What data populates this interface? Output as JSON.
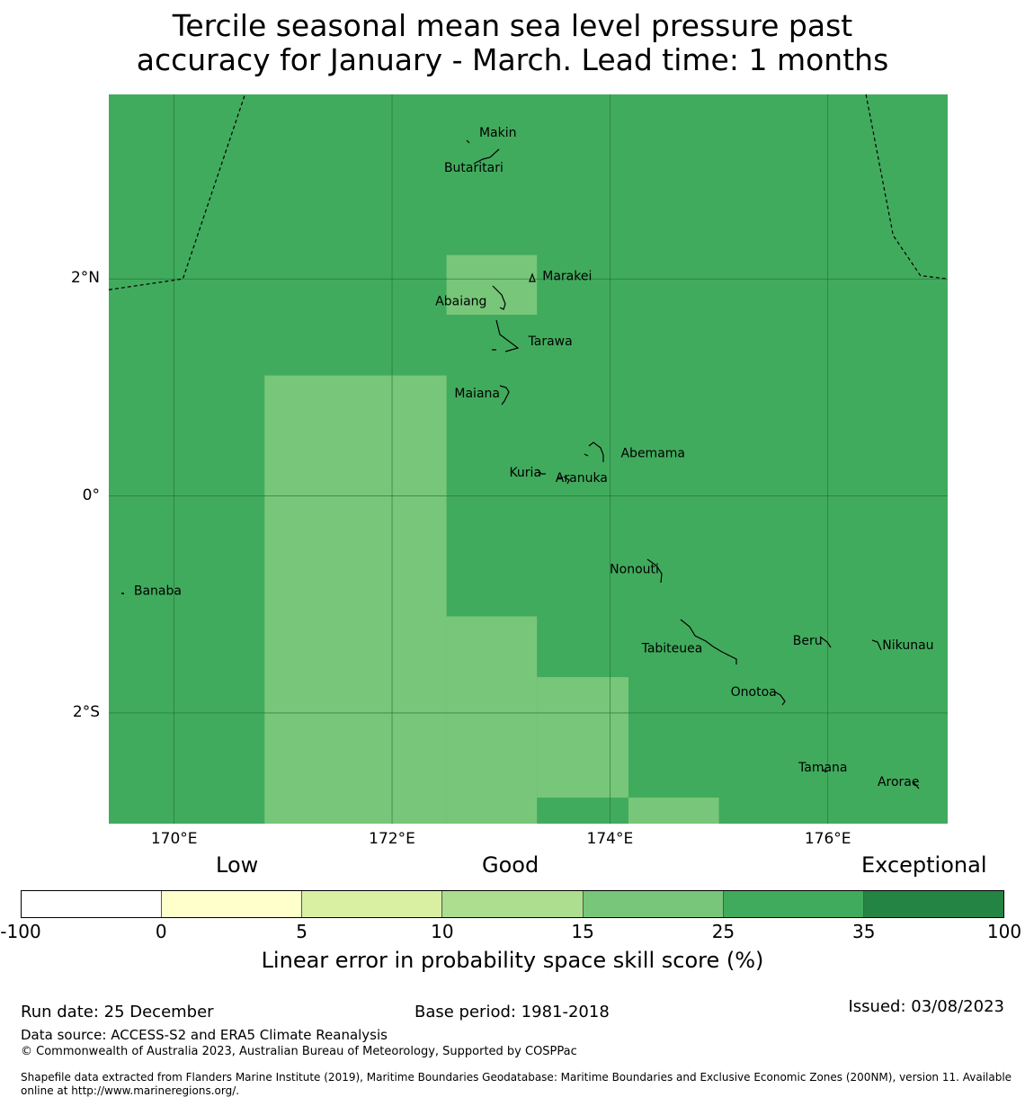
{
  "title": {
    "line1": "Tercile seasonal mean sea level pressure past",
    "line2": "accuracy for January - March. Lead time: 1 months"
  },
  "map": {
    "lon_range": [
      169.4,
      177.1
    ],
    "lat_range": [
      -3.02,
      3.7
    ],
    "base_color": "#41ab5d",
    "grid_color": "#1f6e33",
    "good_color": "#78c679",
    "good_cells": [
      {
        "lon": [
          172.5,
          173.33
        ],
        "lat": [
          1.67,
          2.22
        ]
      },
      {
        "lon": [
          170.83,
          172.5
        ],
        "lat": [
          -3.02,
          1.11
        ]
      },
      {
        "lon": [
          172.5,
          173.33
        ],
        "lat": [
          -3.02,
          -1.11
        ]
      },
      {
        "lon": [
          173.33,
          174.17
        ],
        "lat": [
          -2.78,
          -1.67
        ]
      },
      {
        "lon": [
          174.17,
          175.0
        ],
        "lat": [
          -3.02,
          -2.78
        ]
      }
    ],
    "x_ticks": [
      {
        "value": 170,
        "label": "170°E"
      },
      {
        "value": 172,
        "label": "172°E"
      },
      {
        "value": 174,
        "label": "174°E"
      },
      {
        "value": 176,
        "label": "176°E"
      }
    ],
    "y_ticks": [
      {
        "value": 2,
        "label": "2°N"
      },
      {
        "value": 0,
        "label": "0°"
      },
      {
        "value": -2,
        "label": "2°S"
      }
    ],
    "eez_boundaries": [
      [
        [
          169.4,
          1.9
        ],
        [
          170.08,
          2.0
        ],
        [
          170.65,
          3.7
        ]
      ],
      [
        [
          176.35,
          3.7
        ],
        [
          176.6,
          2.4
        ],
        [
          176.85,
          2.03
        ],
        [
          177.1,
          2.0
        ]
      ]
    ],
    "places": [
      {
        "name": "Makin",
        "lon": 173.0,
        "lat": 3.35,
        "anchor": "start",
        "dlon": -0.2
      },
      {
        "name": "Butaritari",
        "lon": 172.75,
        "lat": 3.03,
        "anchor": "middle",
        "dlon": 0
      },
      {
        "name": "Marakei",
        "lon": 173.28,
        "lat": 2.03,
        "anchor": "start",
        "dlon": 0.1
      },
      {
        "name": "Abaiang",
        "lon": 172.9,
        "lat": 1.8,
        "anchor": "end",
        "dlon": -0.03
      },
      {
        "name": "Tarawa",
        "lon": 173.0,
        "lat": 1.43,
        "anchor": "start",
        "dlon": 0.25
      },
      {
        "name": "Maiana",
        "lon": 173.02,
        "lat": 0.95,
        "anchor": "end",
        "dlon": -0.03
      },
      {
        "name": "Abemama",
        "lon": 173.9,
        "lat": 0.4,
        "anchor": "start",
        "dlon": 0.2
      },
      {
        "name": "Kuria",
        "lon": 173.4,
        "lat": 0.22,
        "anchor": "end",
        "dlon": -0.03
      },
      {
        "name": "Aranuka",
        "lon": 173.6,
        "lat": 0.17,
        "anchor": "start",
        "dlon": -0.1
      },
      {
        "name": "Nonouti",
        "lon": 174.4,
        "lat": -0.67,
        "anchor": "end",
        "dlon": 0.05
      },
      {
        "name": "Banaba",
        "lon": 169.53,
        "lat": -0.87,
        "anchor": "start",
        "dlon": 0.1
      },
      {
        "name": "Tabiteuea",
        "lon": 174.8,
        "lat": -1.4,
        "anchor": "end",
        "dlon": 0.05
      },
      {
        "name": "Beru",
        "lon": 175.98,
        "lat": -1.33,
        "anchor": "end",
        "dlon": -0.03
      },
      {
        "name": "Nikunau",
        "lon": 176.45,
        "lat": -1.37,
        "anchor": "start",
        "dlon": 0.05
      },
      {
        "name": "Onotoa",
        "lon": 175.55,
        "lat": -1.8,
        "anchor": "end",
        "dlon": -0.02
      },
      {
        "name": "Tamana",
        "lon": 175.98,
        "lat": -2.5,
        "anchor": "end",
        "dlon": 0.2
      },
      {
        "name": "Arorae",
        "lon": 176.82,
        "lat": -2.63,
        "anchor": "end",
        "dlon": 0.02
      }
    ]
  },
  "legend": {
    "categories": {
      "low": "Low",
      "good": "Good",
      "exceptional": "Exceptional"
    },
    "colors": [
      "#ffffff",
      "#ffffcc",
      "#d9f0a3",
      "#addd8e",
      "#78c679",
      "#41ab5d",
      "#238443"
    ],
    "ticks": [
      "-100",
      "0",
      "5",
      "10",
      "15",
      "25",
      "35",
      "100"
    ],
    "label": "Linear error in probability space skill score (%)"
  },
  "footer": {
    "run_date": "Run date: 25 December",
    "base_period": "Base period: 1981-2018",
    "issued": "Issued: 03/08/2023",
    "data_source": "Data source: ACCESS-S2 and ERA5 Climate Reanalysis",
    "copyright": "© Commonwealth of Australia 2023, Australian Bureau of Meteorology, Supported by COSPPac",
    "shapefile": "Shapefile data extracted from Flanders Marine Institute (2019), Maritime Boundaries Geodatabase: Maritime Boundaries and Exclusive Economic Zones (200NM), version 11. Available online at http://www.marineregions.org/."
  }
}
